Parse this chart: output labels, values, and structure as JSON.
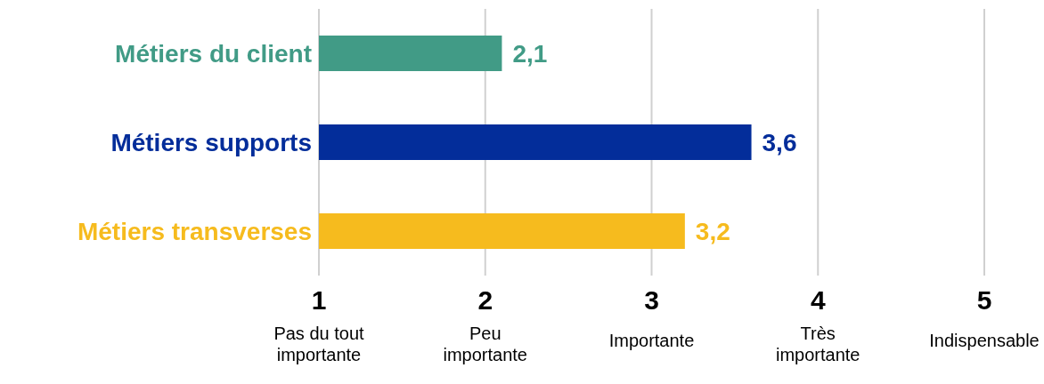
{
  "chart_data": {
    "type": "bar",
    "orientation": "horizontal",
    "categories": [
      "Métiers du client",
      "Métiers supports",
      "Métiers transverses"
    ],
    "values": [
      2.1,
      3.6,
      3.2
    ],
    "colors": [
      "#419b86",
      "#032d9a",
      "#f6bb1e"
    ],
    "value_labels": [
      "2,1",
      "3,6",
      "3,2"
    ],
    "xlim": [
      1,
      5
    ],
    "xticks": [
      {
        "value": 1,
        "label": "1\nPas du tout\nimportante"
      },
      {
        "value": 2,
        "label": "2\nPeu\nimportante"
      },
      {
        "value": 3,
        "label": "3\nImportante"
      },
      {
        "value": 4,
        "label": "4\nTrès\nimportante"
      },
      {
        "value": 5,
        "label": "5\nIndispensable"
      }
    ],
    "grid": "x"
  }
}
